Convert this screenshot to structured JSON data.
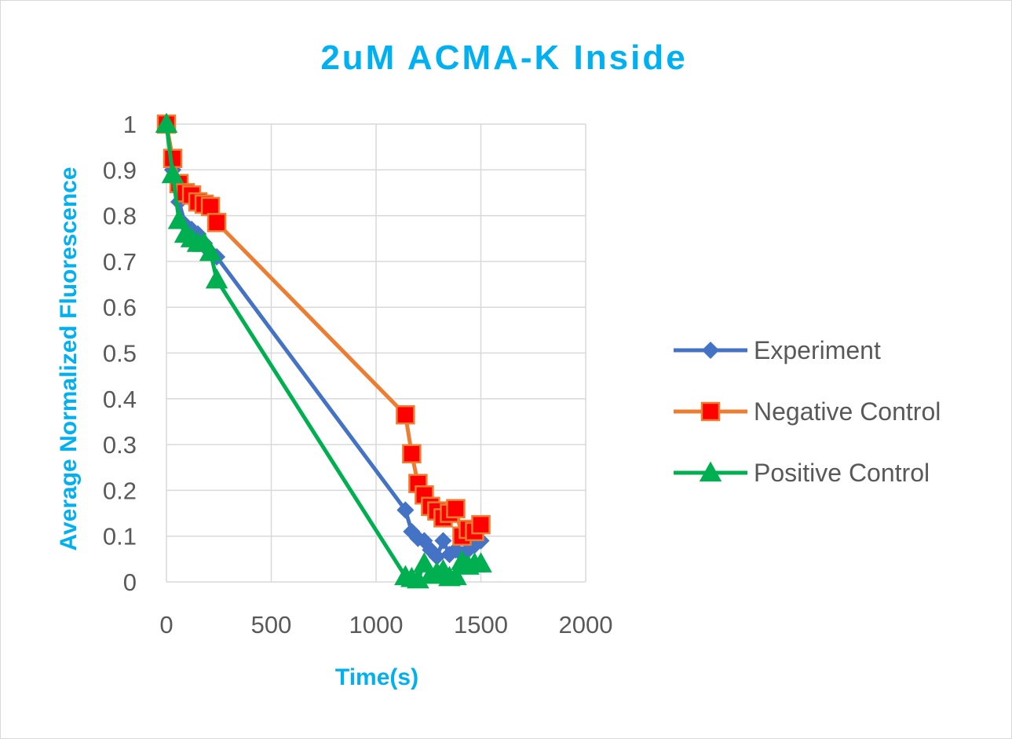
{
  "chart_data": {
    "type": "line",
    "title": "2uM ACMA-K Inside",
    "xlabel": "Time(s)",
    "ylabel": "Average Normalized Fluorescence",
    "xlim": [
      0,
      2000
    ],
    "ylim": [
      0,
      1
    ],
    "x_ticks": [
      "0",
      "500",
      "1000",
      "1500",
      "2000"
    ],
    "y_ticks": [
      "0",
      "0.1",
      "0.2",
      "0.3",
      "0.4",
      "0.5",
      "0.6",
      "0.7",
      "0.8",
      "0.9",
      "1"
    ],
    "x_tick_values": [
      0,
      500,
      1000,
      1500,
      2000
    ],
    "y_tick_values": [
      0,
      0.1,
      0.2,
      0.3,
      0.4,
      0.5,
      0.6,
      0.7,
      0.8,
      0.9,
      1
    ],
    "grid": true,
    "legend_position": "right",
    "title_color": "#00b0f0",
    "series": [
      {
        "name": "Experiment",
        "color": "#4472c4",
        "marker": "diamond",
        "x": [
          0,
          30,
          60,
          90,
          120,
          150,
          180,
          210,
          240,
          1140,
          1170,
          1200,
          1230,
          1260,
          1290,
          1320,
          1350,
          1380,
          1410,
          1440,
          1470,
          1500
        ],
        "y": [
          1.0,
          0.9,
          0.83,
          0.78,
          0.77,
          0.76,
          0.74,
          0.72,
          0.71,
          0.157,
          0.11,
          0.095,
          0.09,
          0.07,
          0.055,
          0.09,
          0.06,
          0.07,
          0.06,
          0.07,
          0.08,
          0.09
        ]
      },
      {
        "name": "Negative Control",
        "color": "#ed7d31",
        "fill": "#ff0000",
        "marker": "square",
        "x": [
          0,
          30,
          60,
          90,
          120,
          150,
          180,
          210,
          240,
          1140,
          1170,
          1200,
          1230,
          1260,
          1290,
          1320,
          1350,
          1380,
          1410,
          1440,
          1470,
          1500
        ],
        "y": [
          1.0,
          0.925,
          0.87,
          0.85,
          0.845,
          0.83,
          0.825,
          0.82,
          0.785,
          0.365,
          0.28,
          0.215,
          0.19,
          0.165,
          0.155,
          0.14,
          0.15,
          0.16,
          0.1,
          0.115,
          0.11,
          0.125
        ]
      },
      {
        "name": "Positive Control",
        "color": "#00b050",
        "marker": "triangle",
        "x": [
          0,
          30,
          60,
          90,
          120,
          150,
          180,
          210,
          240,
          1140,
          1170,
          1200,
          1230,
          1260,
          1290,
          1320,
          1350,
          1380,
          1410,
          1440,
          1470,
          1500
        ],
        "y": [
          1.0,
          0.89,
          0.79,
          0.76,
          0.75,
          0.74,
          0.74,
          0.72,
          0.66,
          0.012,
          0.008,
          0.005,
          0.04,
          0.015,
          0.02,
          0.025,
          0.01,
          0.012,
          0.045,
          0.035,
          0.04,
          0.04
        ]
      }
    ]
  }
}
